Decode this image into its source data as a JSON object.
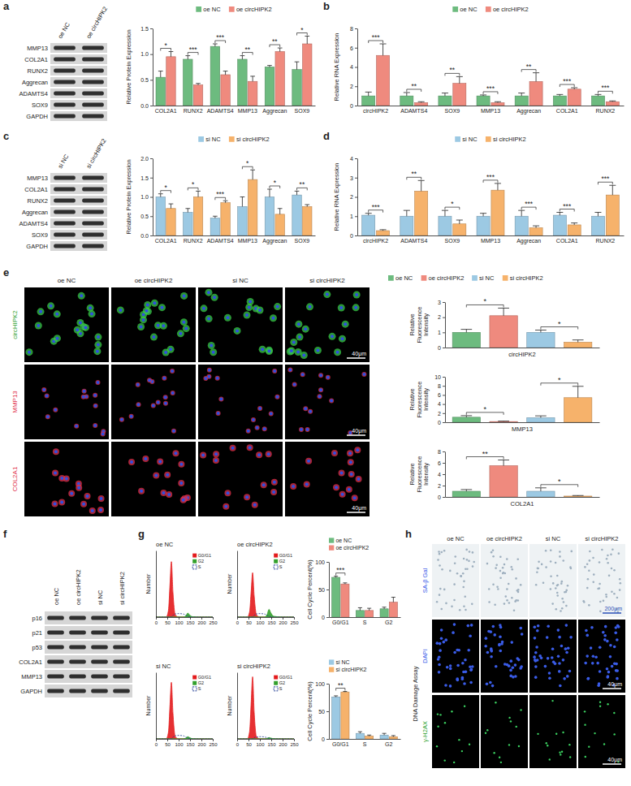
{
  "figure": {
    "letters": [
      "a",
      "b",
      "c",
      "d",
      "e",
      "f",
      "g",
      "h"
    ],
    "blots": [
      {
        "columns": [
          "oe NC",
          "oe circHIPK2"
        ],
        "rows": [
          "MMP13",
          "COL2A1",
          "RUNX2",
          "Aggrecan",
          "ADAMTS4",
          "SOX9",
          "GAPDH"
        ]
      },
      {
        "columns": [
          "si NC",
          "si circHIPK2"
        ],
        "rows": [
          "MMP13",
          "COL2A1",
          "RUNX2",
          "Aggrecan",
          "ADAMTS4",
          "SOX9",
          "GAPDH"
        ]
      },
      {
        "columns": [
          "oe NC",
          "oe circHIPK2",
          "si NC",
          "si circHIPK2"
        ],
        "rows": [
          "p16",
          "p21",
          "p53",
          "COL2A1",
          "MMP13",
          "GAPDH"
        ]
      }
    ],
    "fluorescence": {
      "columns": [
        "oe NC",
        "oe circHIPK2",
        "si NC",
        "si circHIPK2"
      ],
      "rows": [
        "circHIPK2",
        "MMP13",
        "COL2A1"
      ],
      "scale_bar": "40μm"
    },
    "senescence": {
      "columns": [
        "oe NC",
        "oe circHIPK2",
        "si NC",
        "si circHIPK2"
      ],
      "rows": [
        "SA-β Gal",
        "DAPI",
        "γ-H2AX"
      ],
      "group": "DNA Damage Assay",
      "scale_bars": [
        "200μm",
        "40μm",
        "40μm"
      ]
    }
  },
  "chart_data": [
    {
      "type": "bar",
      "y_label": "Relative Protein Expression",
      "legend": "top",
      "categories": [
        "COL2A1",
        "RUNX2",
        "ADAMTS4",
        "MMP13",
        "Aggrecan",
        "SOX9"
      ],
      "series": [
        {
          "name": "oe NC",
          "color": "#6dbb7f",
          "values": [
            0.55,
            0.9,
            1.15,
            0.9,
            0.75,
            0.7
          ],
          "errors": [
            0.12,
            0.07,
            0.05,
            0.07,
            0.03,
            0.15
          ]
        },
        {
          "name": "oe circHIPK2",
          "color": "#ef8a7e",
          "values": [
            0.95,
            0.4,
            0.6,
            0.47,
            1.05,
            1.2
          ],
          "errors": [
            0.1,
            0.03,
            0.07,
            0.1,
            0.07,
            0.15
          ]
        }
      ],
      "annotations": [
        "*",
        "***",
        "***",
        "**",
        "**",
        "*"
      ],
      "ylim": [
        0,
        1.5
      ],
      "yticks": [
        {
          "value": 0,
          "label": "0.0"
        },
        {
          "value": 0.5,
          "label": "0.5"
        },
        {
          "value": 1,
          "label": "1.0"
        },
        {
          "value": 1.5,
          "label": "1.5"
        }
      ]
    },
    {
      "type": "bar",
      "y_label": "Relative RNA Expression",
      "legend": "top",
      "categories": [
        "circHIPK2",
        "ADAMTS4",
        "SOX9",
        "MMP13",
        "Aggrecan",
        "COL2A1",
        "RUNX2"
      ],
      "series": [
        {
          "name": "oe NC",
          "color": "#6dbb7f",
          "values": [
            1,
            1,
            1,
            1,
            1,
            1,
            1
          ],
          "errors": [
            0.4,
            0.35,
            0.3,
            0.1,
            0.3,
            0.15,
            0.15
          ]
        },
        {
          "name": "oe circHIPK2",
          "color": "#ef8a7e",
          "values": [
            5.2,
            0.3,
            2.3,
            0.3,
            2.5,
            1.7,
            0.4
          ],
          "errors": [
            1.2,
            0.1,
            0.7,
            0.1,
            0.9,
            0.15,
            0.08
          ]
        }
      ],
      "annotations": [
        "***",
        "**",
        "**",
        "***",
        "**",
        "***",
        "***"
      ],
      "ylim": [
        0,
        8
      ],
      "yticks": [
        0,
        2,
        4,
        6,
        8
      ]
    },
    {
      "type": "bar",
      "y_label": "Relative Protein Expression",
      "legend": "top",
      "categories": [
        "COL2A1",
        "RUNX2",
        "ADAMTS4",
        "MMP13",
        "Aggrecan",
        "SOX9"
      ],
      "series": [
        {
          "name": "si NC",
          "color": "#9cc9e3",
          "values": [
            1.0,
            0.6,
            0.45,
            0.75,
            1.0,
            1.05
          ],
          "errors": [
            0.08,
            0.1,
            0.05,
            0.25,
            0.2,
            0.1
          ]
        },
        {
          "name": "si circHIPK2",
          "color": "#f6b26b",
          "values": [
            0.7,
            1.0,
            0.85,
            1.45,
            0.55,
            0.75
          ],
          "errors": [
            0.12,
            0.15,
            0.05,
            0.25,
            0.15,
            0.05
          ]
        }
      ],
      "annotations": [
        "*",
        "*",
        "***",
        "*",
        "*",
        "**"
      ],
      "ylim": [
        0,
        2
      ],
      "yticks": [
        {
          "value": 0,
          "label": "0.0"
        },
        {
          "value": 0.5,
          "label": "0.5"
        },
        {
          "value": 1,
          "label": "1.0"
        },
        {
          "value": 1.5,
          "label": "1.5"
        },
        {
          "value": 2,
          "label": "2.0"
        }
      ]
    },
    {
      "type": "bar",
      "y_label": "Relative RNA Expression",
      "legend": "top",
      "categories": [
        "circHIPK2",
        "ADAMTS4",
        "SOX9",
        "MMP13",
        "Aggrecan",
        "COL2A1",
        "RUNX2"
      ],
      "series": [
        {
          "name": "si NC",
          "color": "#9cc9e3",
          "values": [
            1.05,
            1.0,
            1.0,
            1.0,
            1.0,
            1.05,
            1.0
          ],
          "errors": [
            0.1,
            0.3,
            0.3,
            0.15,
            0.3,
            0.15,
            0.2
          ]
        },
        {
          "name": "si circHIPK2",
          "color": "#f6b26b",
          "values": [
            0.25,
            2.3,
            0.6,
            2.35,
            0.4,
            0.55,
            2.1
          ],
          "errors": [
            0.05,
            0.55,
            0.2,
            0.35,
            0.1,
            0.1,
            0.5
          ]
        }
      ],
      "annotations": [
        "***",
        "**",
        "*",
        "***",
        "***",
        "***",
        "***"
      ],
      "ylim": [
        0,
        4
      ],
      "yticks": [
        0,
        1,
        2,
        3,
        4
      ]
    },
    {
      "type": "bar",
      "y_label": "Relative Fluorescence Intensity",
      "legend": "top",
      "series": [
        {
          "name": "oe NC",
          "color": "#6dbb7f"
        },
        {
          "name": "oe circHIPK2",
          "color": "#ef8a7e"
        },
        {
          "name": "si NC",
          "color": "#9cc9e3"
        },
        {
          "name": "si circHIPK2",
          "color": "#f6b26b"
        }
      ],
      "panels": [
        {
          "x_label": "circHIPK2",
          "ylim": [
            0,
            3
          ],
          "yticks": [
            0,
            1,
            2,
            3
          ],
          "values": [
            1.0,
            2.1,
            1.0,
            0.35
          ],
          "errors": [
            0.2,
            0.5,
            0.15,
            0.15
          ],
          "annotations": [
            "*",
            "*"
          ]
        },
        {
          "x_label": "MMP13",
          "ylim": [
            0,
            10
          ],
          "yticks": [
            0,
            2,
            4,
            6,
            8,
            10
          ],
          "values": [
            1.1,
            0.15,
            1.0,
            5.4
          ],
          "errors": [
            0.35,
            0.1,
            0.4,
            2.5
          ],
          "annotations": [
            "*",
            "*"
          ]
        },
        {
          "x_label": "COL2A1",
          "ylim": [
            0,
            8
          ],
          "yticks": [
            0,
            2,
            4,
            6,
            8
          ],
          "values": [
            1.0,
            5.5,
            1.0,
            0.15
          ],
          "errors": [
            0.3,
            1.0,
            0.6,
            0.1
          ],
          "annotations": [
            "**",
            "*"
          ]
        }
      ]
    },
    {
      "type": "area",
      "title": "oe NC",
      "y_label": "Number",
      "legend": "top-right",
      "tick_labels": "x",
      "x": [
        0,
        45,
        55,
        62,
        68,
        75,
        85,
        100,
        120,
        132,
        140,
        148,
        160,
        200,
        250
      ],
      "xlim": [
        0,
        250
      ],
      "xticks": [
        0,
        50,
        100,
        150,
        200,
        250
      ],
      "ylim": [
        0,
        300
      ],
      "series": [
        {
          "name": "G0/G1",
          "color": "#e31a1c",
          "values": [
            0,
            0,
            30,
            150,
            250,
            110,
            10,
            0,
            0,
            0,
            0,
            0,
            0,
            0,
            0
          ]
        },
        {
          "name": "G2",
          "color": "#33a02c",
          "values": [
            0,
            0,
            0,
            0,
            0,
            0,
            0,
            0,
            0,
            6,
            18,
            10,
            2,
            0,
            0
          ]
        },
        {
          "name": "S",
          "color": "#1f3a93",
          "line_style": "dashed",
          "values": [
            0,
            0,
            0,
            0,
            0,
            8,
            14,
            16,
            14,
            8,
            4,
            2,
            0,
            0,
            0
          ]
        }
      ]
    },
    {
      "type": "area",
      "title": "oe circHIPK2",
      "y_label": "Number",
      "legend": "top-right",
      "tick_labels": "x",
      "x": [
        0,
        45,
        55,
        62,
        68,
        75,
        85,
        100,
        120,
        132,
        140,
        148,
        160,
        200,
        250
      ],
      "xlim": [
        0,
        250
      ],
      "xticks": [
        0,
        50,
        100,
        150,
        200,
        250
      ],
      "ylim": [
        0,
        300
      ],
      "series": [
        {
          "name": "G0/G1",
          "color": "#e31a1c",
          "values": [
            0,
            0,
            25,
            120,
            200,
            95,
            10,
            0,
            0,
            0,
            0,
            0,
            0,
            0,
            0
          ]
        },
        {
          "name": "G2",
          "color": "#33a02c",
          "values": [
            0,
            0,
            0,
            0,
            0,
            0,
            0,
            0,
            0,
            12,
            35,
            20,
            4,
            0,
            0
          ]
        },
        {
          "name": "S",
          "color": "#1f3a93",
          "line_style": "dashed",
          "values": [
            0,
            0,
            0,
            0,
            0,
            8,
            14,
            16,
            14,
            8,
            4,
            2,
            0,
            0,
            0
          ]
        }
      ]
    },
    {
      "type": "bar",
      "y_label": "Cell Cycle Percent(%)",
      "legend": "top",
      "categories": [
        "G0/G1",
        "S",
        "G2"
      ],
      "series": [
        {
          "name": "oe NC",
          "color": "#6dbb7f",
          "values": [
            72,
            12,
            15
          ],
          "errors": [
            2,
            5,
            3
          ]
        },
        {
          "name": "oe circHIPK2",
          "color": "#ef8a7e",
          "values": [
            60,
            12,
            27
          ],
          "errors": [
            2,
            4,
            9
          ]
        }
      ],
      "annotations": [
        "***",
        null,
        null
      ],
      "ylim": [
        0,
        100
      ],
      "yticks": [
        0,
        50,
        100
      ]
    },
    {
      "type": "area",
      "title": "si NC",
      "y_label": "Number",
      "legend": "top-right",
      "tick_labels": "x",
      "x": [
        0,
        45,
        55,
        62,
        68,
        75,
        85,
        100,
        120,
        132,
        140,
        148,
        160,
        200,
        250
      ],
      "xlim": [
        0,
        250
      ],
      "xticks": [
        0,
        50,
        100,
        150,
        200,
        250
      ],
      "ylim": [
        0,
        300
      ],
      "series": [
        {
          "name": "G0/G1",
          "color": "#e31a1c",
          "values": [
            0,
            0,
            30,
            155,
            255,
            115,
            10,
            0,
            0,
            0,
            0,
            0,
            0,
            0,
            0
          ]
        },
        {
          "name": "G2",
          "color": "#33a02c",
          "values": [
            0,
            0,
            0,
            0,
            0,
            0,
            0,
            0,
            0,
            4,
            10,
            6,
            1,
            0,
            0
          ]
        },
        {
          "name": "S",
          "color": "#1f3a93",
          "line_style": "dashed",
          "values": [
            0,
            0,
            0,
            0,
            0,
            8,
            14,
            16,
            14,
            8,
            4,
            2,
            0,
            0,
            0
          ]
        }
      ]
    },
    {
      "type": "area",
      "title": "si circHIPK2",
      "y_label": "Number",
      "legend": "top-right",
      "tick_labels": "x",
      "x": [
        0,
        45,
        55,
        62,
        68,
        75,
        85,
        100,
        120,
        132,
        140,
        148,
        160,
        200,
        250
      ],
      "xlim": [
        0,
        250
      ],
      "xticks": [
        0,
        50,
        100,
        150,
        200,
        250
      ],
      "ylim": [
        0,
        300
      ],
      "series": [
        {
          "name": "G0/G1",
          "color": "#e31a1c",
          "values": [
            0,
            0,
            35,
            170,
            280,
            120,
            10,
            0,
            0,
            0,
            0,
            0,
            0,
            0,
            0
          ]
        },
        {
          "name": "G2",
          "color": "#33a02c",
          "values": [
            0,
            0,
            0,
            0,
            0,
            0,
            0,
            0,
            0,
            2,
            6,
            4,
            1,
            0,
            0
          ]
        },
        {
          "name": "S",
          "color": "#1f3a93",
          "line_style": "dashed",
          "values": [
            0,
            0,
            0,
            0,
            0,
            5,
            9,
            10,
            9,
            5,
            3,
            1,
            0,
            0,
            0
          ]
        }
      ]
    },
    {
      "type": "bar",
      "y_label": "Cell Cycle Percent(%)",
      "legend": "top",
      "categories": [
        "G0/G1",
        "S",
        "G2"
      ],
      "series": [
        {
          "name": "si NC",
          "color": "#9cc9e3",
          "values": [
            76,
            10,
            7
          ],
          "errors": [
            2,
            3,
            3
          ]
        },
        {
          "name": "si circHIPK2",
          "color": "#f6b26b",
          "values": [
            85,
            5,
            4
          ],
          "errors": [
            1,
            2,
            2
          ]
        }
      ],
      "annotations": [
        "**",
        null,
        null
      ],
      "ylim": [
        0,
        100
      ],
      "yticks": [
        0,
        50,
        100
      ]
    }
  ]
}
